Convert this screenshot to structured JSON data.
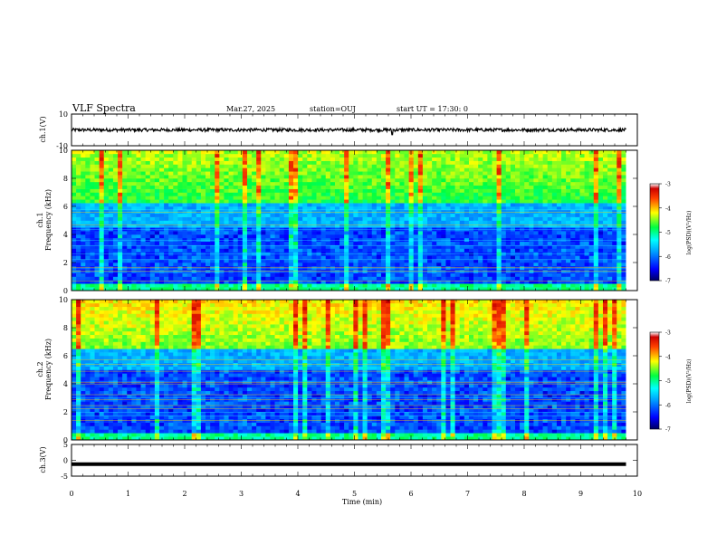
{
  "header": {
    "title": "VLF Spectra",
    "date": "Mar.27, 2025",
    "station": "station=OUJ",
    "start": "start  UT =   17:30: 0"
  },
  "chart_data": [
    {
      "type": "line",
      "panel": "ch1-waveform",
      "ylabel": "ch.1(V)",
      "ylim": [
        -10,
        10
      ],
      "yticks": [
        "10",
        "-10"
      ],
      "x_range_min": [
        0,
        9.8
      ],
      "baseline_v": 0,
      "noise_amplitude_v": 1,
      "spike_at_min": 5.67,
      "spike_min_v": -3,
      "color": "#000000"
    },
    {
      "type": "heatmap",
      "panel": "ch1-spectrogram",
      "ylabel": "ch.1\nFrequency (kHz)",
      "ylim": [
        0,
        10
      ],
      "yticks": [
        "0",
        "2",
        "4",
        "6",
        "8",
        "10"
      ],
      "x_range_min": [
        0,
        9.8
      ],
      "colorbar": {
        "label": "log(PSD)(V²/Hz)",
        "min": -7,
        "max": -3,
        "ticks": [
          "-3",
          "-4",
          "-5",
          "-6",
          "-7"
        ]
      },
      "description_bands_khz": {
        "high_level_above": 6.3,
        "low_level_band": [
          0.5,
          4.5
        ]
      }
    },
    {
      "type": "heatmap",
      "panel": "ch2-spectrogram",
      "ylabel": "ch.2\nFrequency (kHz)",
      "ylim": [
        0,
        10
      ],
      "yticks": [
        "0",
        "2",
        "4",
        "6",
        "8",
        "10"
      ],
      "x_range_min": [
        0,
        9.8
      ],
      "colorbar": {
        "label": "log(PSD)(V²/Hz)",
        "min": -7,
        "max": -3,
        "ticks": [
          "-3",
          "-4",
          "-5",
          "-6",
          "-7"
        ]
      },
      "description_bands_khz": {
        "high_level_above": 6.5,
        "low_level_band": [
          0.5,
          5
        ]
      }
    },
    {
      "type": "line",
      "panel": "ch3-waveform",
      "ylabel": "ch.3(V)",
      "ylim": [
        -5,
        5
      ],
      "yticks": [
        "5",
        "0",
        "-5"
      ],
      "x_range_min": [
        0,
        9.8
      ],
      "constant_v": -1.2,
      "color": "#000000"
    }
  ],
  "xaxis": {
    "label": "Time (min)",
    "ticks": [
      "0",
      "1",
      "2",
      "3",
      "4",
      "5",
      "6",
      "7",
      "8",
      "9",
      "10"
    ],
    "range": [
      0,
      10
    ]
  },
  "colorbar_label": "log(PSD)(V²/Hz)",
  "colors": {
    "axes": "#000000",
    "trace": "#000000"
  }
}
